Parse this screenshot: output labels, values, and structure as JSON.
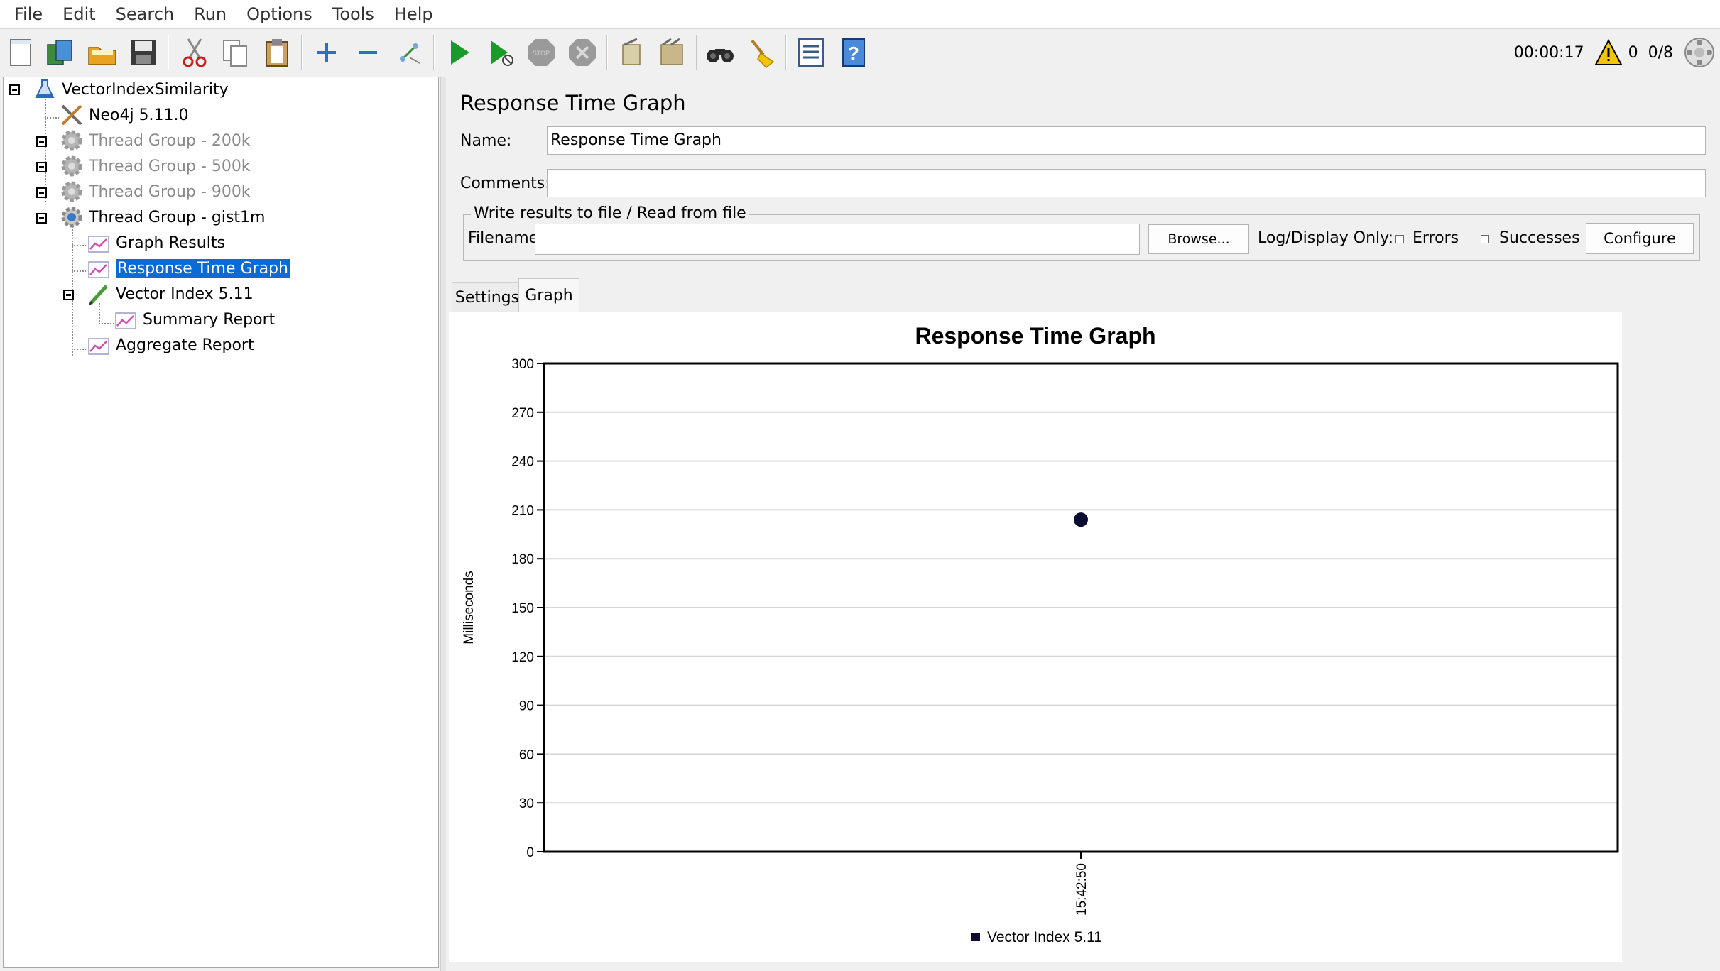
{
  "menu": [
    "File",
    "Edit",
    "Search",
    "Run",
    "Options",
    "Tools",
    "Help"
  ],
  "toolbar": {
    "icons": [
      "new-icon",
      "templates-icon",
      "open-icon",
      "save-icon",
      "cut-icon",
      "copy-icon",
      "paste-icon",
      "expand-icon",
      "collapse-icon",
      "toggle-icon",
      "start-icon",
      "start-no-pause-icon",
      "stop-icon",
      "shutdown-icon",
      "clear-icon",
      "clear-all-icon",
      "search-icon",
      "reset-search-icon",
      "function-helper-icon",
      "help-icon"
    ],
    "timer": "00:00:17",
    "warning_count": "0",
    "threads": "0/8",
    "colors": {
      "play": "#1a9a28",
      "stop": "#9a9a9a",
      "warning": "#f5c400",
      "selection": "#0a6bd6"
    }
  },
  "tree": [
    {
      "label": "VectorIndexSimilarity",
      "icon": "test-plan-icon",
      "disabled": false
    },
    {
      "label": "Neo4j 5.11.0",
      "icon": "config-tools-icon",
      "disabled": false
    },
    {
      "label": "Thread Group - 200k",
      "icon": "gear-icon",
      "disabled": true
    },
    {
      "label": "Thread Group - 500k",
      "icon": "gear-icon",
      "disabled": true
    },
    {
      "label": "Thread Group - 900k",
      "icon": "gear-icon",
      "disabled": true
    },
    {
      "label": "Thread Group - gist1m",
      "icon": "gear-icon",
      "disabled": false
    },
    {
      "label": "Graph Results",
      "icon": "listener-graph-icon",
      "disabled": false
    },
    {
      "label": "Response Time Graph",
      "icon": "listener-graph-icon",
      "disabled": false,
      "selected": true
    },
    {
      "label": "Vector Index 5.11",
      "icon": "sampler-pen-icon",
      "disabled": false
    },
    {
      "label": "Summary Report",
      "icon": "listener-graph-icon",
      "disabled": false
    },
    {
      "label": "Aggregate Report",
      "icon": "listener-graph-icon",
      "disabled": false
    }
  ],
  "panel": {
    "title": "Response Time Graph",
    "name_label": "Name:",
    "name_value": "Response Time Graph",
    "comments_label": "Comments:",
    "comments_value": "",
    "file_group_legend": "Write results to file / Read from file",
    "filename_label": "Filename",
    "filename_value": "",
    "browse_label": "Browse...",
    "log_display_label": "Log/Display Only:",
    "errors_label": "Errors",
    "successes_label": "Successes",
    "configure_label": "Configure",
    "tabs": [
      "Settings",
      "Graph"
    ],
    "active_tab": "Graph"
  },
  "chart_data": {
    "type": "scatter",
    "title": "Response Time Graph",
    "xlabel": "",
    "ylabel": "Milliseconds",
    "ylim": [
      0,
      300
    ],
    "yticks": [
      0,
      30,
      60,
      90,
      120,
      150,
      180,
      210,
      240,
      270,
      300
    ],
    "x_categories": [
      "15:42:50"
    ],
    "grid": true,
    "legend_position": "bottom",
    "series": [
      {
        "name": "Vector Index 5.11",
        "color": "#0b0b33",
        "points": [
          {
            "x": "15:42:50",
            "y": 204
          }
        ]
      }
    ]
  }
}
